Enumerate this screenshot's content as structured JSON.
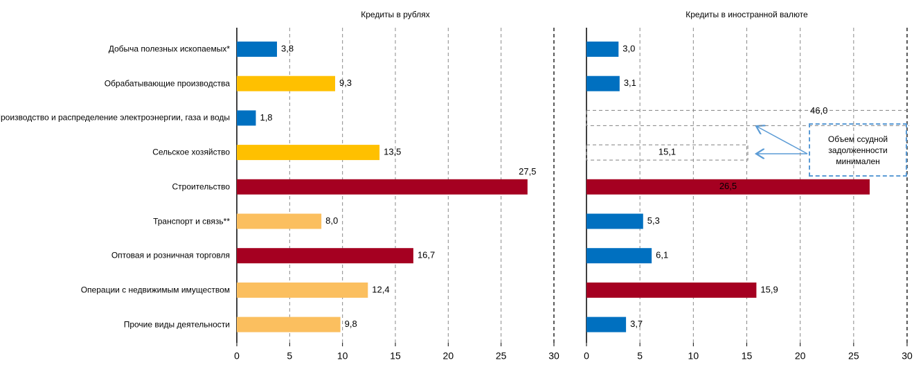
{
  "chart_data": [
    {
      "type": "bar",
      "orientation": "horizontal",
      "title": "Кредиты в рублях",
      "categories": [
        "Добыча полезных ископаемых*",
        "Обрабатывающие производства",
        "Производство и распределение электроэнергии, газа и воды",
        "Сельское хозяйство",
        "Строительство",
        "Транспорт и связь**",
        "Оптовая и розничная торговля",
        "Операции с недвижимым имуществом",
        "Прочие виды деятельности"
      ],
      "values": [
        3.8,
        9.3,
        1.8,
        13.5,
        27.5,
        8.0,
        16.7,
        12.4,
        9.8
      ],
      "value_labels": [
        "3,8",
        "9,3",
        "1,8",
        "13,5",
        "27,5",
        "8,0",
        "16,7",
        "12,4",
        "9,8"
      ],
      "colors": [
        "#0070c0",
        "#ffc000",
        "#0070c0",
        "#ffc000",
        "#a50021",
        "#fbbf5f",
        "#a50021",
        "#fbbf5f",
        "#fbbf5f"
      ],
      "bar_style": [
        "solid",
        "solid",
        "solid",
        "solid",
        "solid",
        "solid",
        "solid",
        "solid",
        "solid"
      ],
      "xlim": [
        0,
        30
      ],
      "xticks": [
        0,
        5,
        10,
        15,
        20,
        25,
        30
      ],
      "grid": true
    },
    {
      "type": "bar",
      "orientation": "horizontal",
      "title": "Кредиты в иностранной валюте",
      "values": [
        3.0,
        3.1,
        46.0,
        15.1,
        26.5,
        5.3,
        6.1,
        15.9,
        3.7
      ],
      "value_labels": [
        "3,0",
        "3,1",
        "46,0",
        "15,1",
        "26,5",
        "5,3",
        "6,1",
        "15,9",
        "3,7"
      ],
      "colors": [
        "#0070c0",
        "#0070c0",
        "#808080",
        "#808080",
        "#a50021",
        "#0070c0",
        "#0070c0",
        "#a50021",
        "#0070c0"
      ],
      "bar_style": [
        "solid",
        "solid",
        "dashed",
        "dashed",
        "solid",
        "solid",
        "solid",
        "solid",
        "solid"
      ],
      "xlim": [
        0,
        30
      ],
      "xticks": [
        0,
        5,
        10,
        15,
        20,
        25,
        30
      ],
      "grid": true,
      "annotation": "Объем ссудной задолженности минимален"
    }
  ]
}
